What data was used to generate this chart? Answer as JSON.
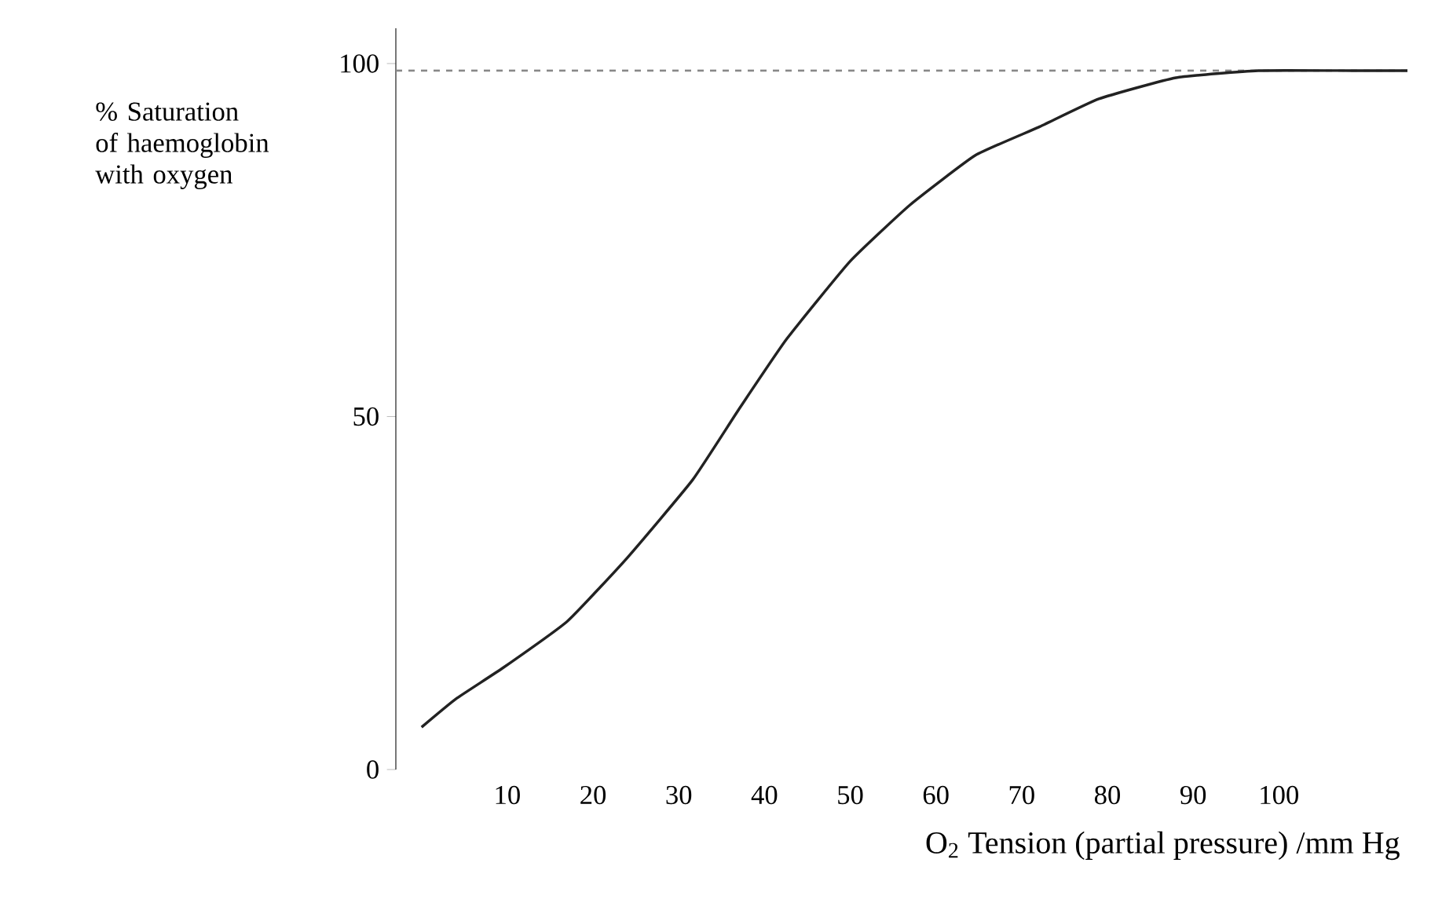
{
  "chart_data": {
    "type": "line",
    "xlabel": "O$_{2}$ Tension (partial pressure) /mm Hg",
    "ylabel": "% Saturation of haemoglobin with oxygen",
    "series": [
      {
        "color": "#222222",
        "x": [
          0,
          4,
          9.5,
          17,
          24,
          31.6,
          37,
          42.6,
          50,
          57,
          64.6,
          72,
          79,
          88,
          97.6,
          108.6,
          115
        ],
        "values": [
          6,
          10,
          14.4,
          21,
          30,
          41,
          51,
          61,
          72,
          80,
          87,
          91,
          95,
          98,
          99,
          99,
          99
        ]
      }
    ],
    "xlim": [
      -3,
      115
    ],
    "ylim": [
      0,
      105
    ],
    "xticks": [
      10,
      20,
      30,
      40,
      50,
      60,
      70,
      80,
      90,
      100
    ],
    "yticks": [
      0,
      50,
      100
    ],
    "ref_lines": [
      {
        "axis": "y",
        "value": 99,
        "color": "#888888",
        "line_style": "dashed"
      }
    ],
    "grid": false,
    "marker": "none",
    "line_style": "solid"
  }
}
